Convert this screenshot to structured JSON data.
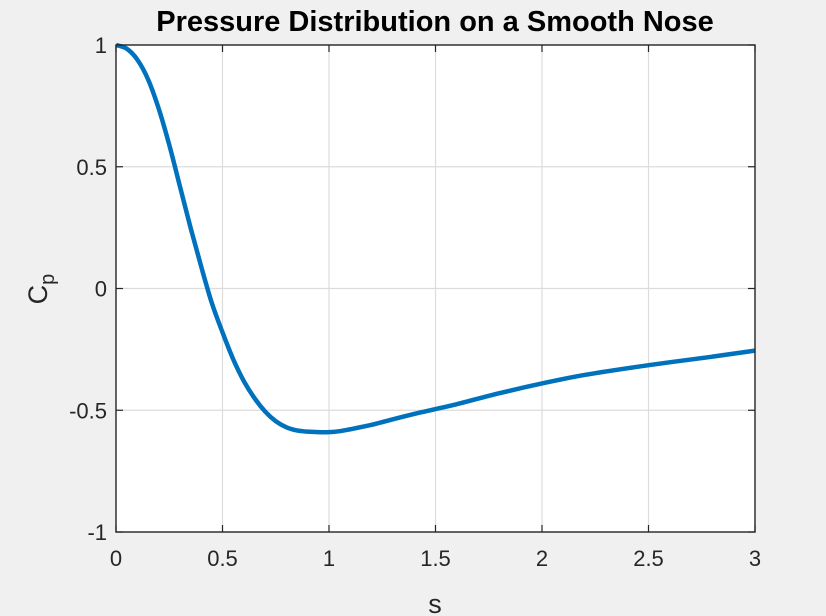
{
  "chart_data": {
    "type": "line",
    "title": "Pressure Distribution on a Smooth Nose",
    "xlabel": "s",
    "ylabel": "C",
    "ylabel_subscript": "p",
    "xlim": [
      0,
      3
    ],
    "ylim": [
      -1,
      1
    ],
    "xticks": [
      0,
      0.5,
      1,
      1.5,
      2,
      2.5,
      3
    ],
    "xtick_labels": [
      "0",
      "0.5",
      "1",
      "1.5",
      "2",
      "2.5",
      "3"
    ],
    "yticks": [
      -1,
      -0.5,
      0,
      0.5,
      1
    ],
    "ytick_labels": [
      "-1",
      "-0.5",
      "0",
      "0.5",
      "1"
    ],
    "grid": true,
    "series": [
      {
        "color": "#0072bd",
        "x": [
          0,
          0.05,
          0.1,
          0.15,
          0.2,
          0.25,
          0.3,
          0.35,
          0.4,
          0.45,
          0.5,
          0.55,
          0.6,
          0.65,
          0.7,
          0.75,
          0.8,
          0.85,
          0.9,
          0.95,
          1.0,
          1.05,
          1.1,
          1.2,
          1.3,
          1.4,
          1.5,
          1.6,
          1.8,
          2.0,
          2.2,
          2.5,
          2.8,
          3.0
        ],
        "y": [
          1.0,
          0.985,
          0.94,
          0.86,
          0.74,
          0.59,
          0.42,
          0.25,
          0.09,
          -0.06,
          -0.18,
          -0.29,
          -0.38,
          -0.45,
          -0.505,
          -0.545,
          -0.57,
          -0.583,
          -0.588,
          -0.59,
          -0.59,
          -0.586,
          -0.578,
          -0.56,
          -0.537,
          -0.515,
          -0.495,
          -0.475,
          -0.43,
          -0.39,
          -0.355,
          -0.315,
          -0.28,
          -0.255
        ]
      }
    ]
  }
}
